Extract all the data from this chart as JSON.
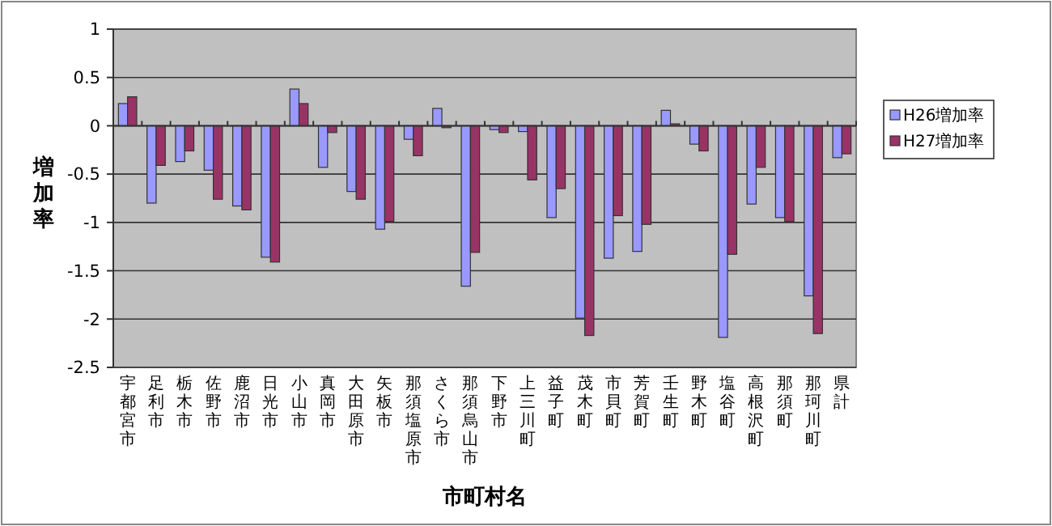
{
  "chart_data": {
    "type": "bar",
    "xlabel": "市町村名",
    "ylabel": "増加率",
    "categories": [
      "宇都宮市",
      "足利市",
      "栃木市",
      "佐野市",
      "鹿沼市",
      "日光市",
      "小山市",
      "真岡市",
      "大田原市",
      "矢板市",
      "那須塩原市",
      "さくら市",
      "那須烏山市",
      "下野市",
      "上三川町",
      "益子町",
      "茂木町",
      "市貝町",
      "芳賀町",
      "壬生町",
      "野木町",
      "塩谷町",
      "高根沢町",
      "那須町",
      "那珂川町",
      "県計"
    ],
    "series": [
      {
        "name": "H26増加率",
        "color": "#9999ff",
        "values": [
          0.23,
          -0.8,
          -0.37,
          -0.46,
          -0.83,
          -1.36,
          0.38,
          -0.43,
          -0.68,
          -1.07,
          -0.14,
          0.18,
          -1.66,
          -0.04,
          -0.06,
          -0.95,
          -1.99,
          -1.37,
          -1.3,
          0.16,
          -0.19,
          -2.19,
          -0.81,
          -0.95,
          -1.76,
          -0.33
        ]
      },
      {
        "name": "H27増加率",
        "color": "#993366",
        "values": [
          0.3,
          -0.41,
          -0.26,
          -0.76,
          -0.87,
          -1.41,
          0.23,
          -0.07,
          -0.76,
          -0.99,
          -0.31,
          -0.02,
          -1.31,
          -0.07,
          -0.56,
          -0.65,
          -2.17,
          -0.93,
          -1.02,
          0.02,
          -0.26,
          -1.33,
          -0.43,
          -0.99,
          -2.15,
          -0.29
        ]
      }
    ],
    "ylim": [
      -2.5,
      1
    ],
    "yticks": [
      -2.5,
      -2,
      -1.5,
      -1,
      -0.5,
      0,
      0.5,
      1
    ],
    "grid": "y",
    "legend": "right"
  }
}
